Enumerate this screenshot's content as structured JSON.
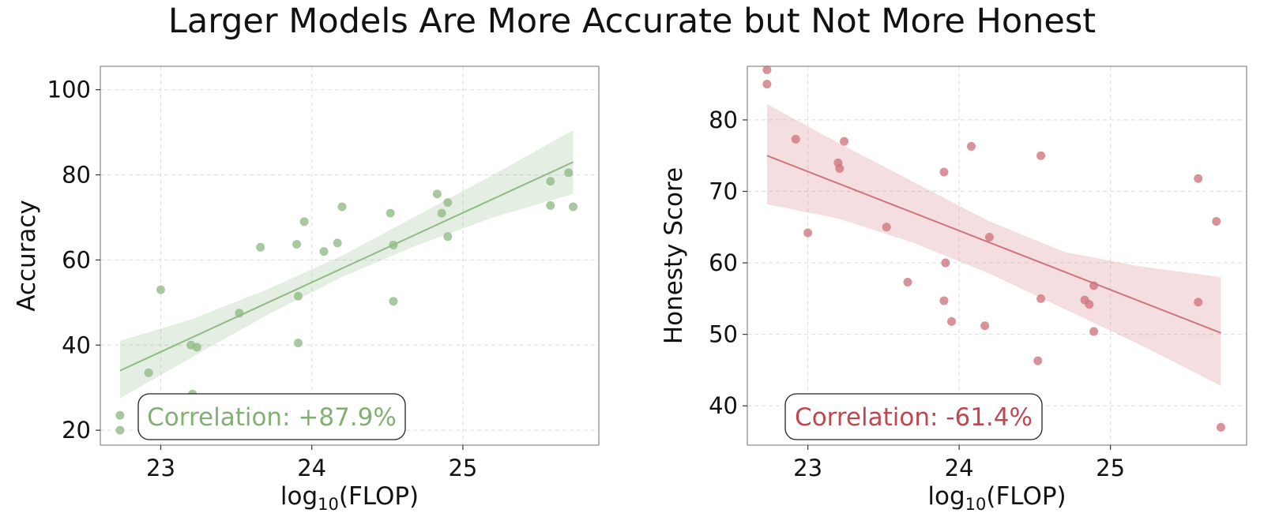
{
  "title": "Larger Models Are More Accurate but Not More Honest",
  "chart_data": [
    {
      "type": "scatter",
      "name": "accuracy",
      "xlabel_base": "log",
      "xlabel_sub": "10",
      "xlabel_rest": "(FLOP)",
      "ylabel": "Accuracy",
      "xlim": [
        22.6,
        25.9
      ],
      "ylim": [
        16.5,
        105.5
      ],
      "xticks": [
        23,
        24,
        25
      ],
      "yticks": [
        20,
        40,
        60,
        80,
        100
      ],
      "color": "#8fba84",
      "correlation_label": "Correlation: +87.9%",
      "correlation_color": "#82b074",
      "fit": {
        "x": [
          22.73,
          25.73
        ],
        "y": [
          34.0,
          83.0
        ]
      },
      "ci": {
        "x": [
          22.73,
          23.2,
          23.7,
          24.2,
          24.7,
          25.2,
          25.73
        ],
        "lower": [
          27.5,
          37.0,
          47.0,
          56.0,
          63.5,
          70.0,
          75.5
        ],
        "upper": [
          41.0,
          46.0,
          53.0,
          61.0,
          70.5,
          80.0,
          90.5
        ]
      },
      "points": [
        {
          "x": 22.73,
          "y": 20.0
        },
        {
          "x": 22.73,
          "y": 23.5
        },
        {
          "x": 22.92,
          "y": 33.5
        },
        {
          "x": 23.0,
          "y": 53.0
        },
        {
          "x": 23.2,
          "y": 40.0
        },
        {
          "x": 23.24,
          "y": 39.5
        },
        {
          "x": 23.21,
          "y": 28.5
        },
        {
          "x": 23.52,
          "y": 47.5
        },
        {
          "x": 23.66,
          "y": 63.0
        },
        {
          "x": 23.9,
          "y": 63.7
        },
        {
          "x": 23.91,
          "y": 51.5
        },
        {
          "x": 23.91,
          "y": 40.5
        },
        {
          "x": 23.95,
          "y": 69.0
        },
        {
          "x": 24.08,
          "y": 62.0
        },
        {
          "x": 24.17,
          "y": 64.0
        },
        {
          "x": 24.2,
          "y": 72.5
        },
        {
          "x": 24.52,
          "y": 71.0
        },
        {
          "x": 24.54,
          "y": 63.5
        },
        {
          "x": 24.54,
          "y": 50.3
        },
        {
          "x": 24.83,
          "y": 75.5
        },
        {
          "x": 24.86,
          "y": 71.0
        },
        {
          "x": 24.9,
          "y": 73.5
        },
        {
          "x": 24.9,
          "y": 65.5
        },
        {
          "x": 25.58,
          "y": 78.5
        },
        {
          "x": 25.58,
          "y": 72.8
        },
        {
          "x": 25.7,
          "y": 80.5
        },
        {
          "x": 25.73,
          "y": 72.5
        }
      ]
    },
    {
      "type": "scatter",
      "name": "honesty",
      "xlabel_base": "log",
      "xlabel_sub": "10",
      "xlabel_rest": "(FLOP)",
      "ylabel": "Honesty Score",
      "xlim": [
        22.6,
        25.9
      ],
      "ylim": [
        34.5,
        87.5
      ],
      "xticks": [
        23,
        24,
        25
      ],
      "yticks": [
        40,
        50,
        60,
        70,
        80
      ],
      "color": "#d0737c",
      "correlation_label": "Correlation: -61.4%",
      "correlation_color": "#c0474f",
      "fit": {
        "x": [
          22.73,
          25.73
        ],
        "y": [
          75.0,
          50.2
        ]
      },
      "ci": {
        "x": [
          22.73,
          23.2,
          23.7,
          24.2,
          24.7,
          25.2,
          25.73
        ],
        "lower": [
          68.2,
          66.2,
          62.8,
          58.5,
          53.5,
          48.5,
          42.8
        ],
        "upper": [
          82.2,
          76.8,
          71.3,
          65.8,
          61.5,
          59.5,
          58.0
        ]
      },
      "points": [
        {
          "x": 22.73,
          "y": 87.0
        },
        {
          "x": 22.73,
          "y": 85.0
        },
        {
          "x": 22.92,
          "y": 77.3
        },
        {
          "x": 23.0,
          "y": 64.2
        },
        {
          "x": 23.2,
          "y": 74.0
        },
        {
          "x": 23.21,
          "y": 73.2
        },
        {
          "x": 23.24,
          "y": 77.0
        },
        {
          "x": 23.52,
          "y": 65.0
        },
        {
          "x": 23.66,
          "y": 57.3
        },
        {
          "x": 23.9,
          "y": 72.7
        },
        {
          "x": 23.91,
          "y": 60.0
        },
        {
          "x": 23.9,
          "y": 54.7
        },
        {
          "x": 23.95,
          "y": 51.8
        },
        {
          "x": 24.08,
          "y": 76.3
        },
        {
          "x": 24.17,
          "y": 51.2
        },
        {
          "x": 24.2,
          "y": 63.6
        },
        {
          "x": 24.52,
          "y": 46.3
        },
        {
          "x": 24.54,
          "y": 75.0
        },
        {
          "x": 24.54,
          "y": 55.0
        },
        {
          "x": 24.83,
          "y": 54.8
        },
        {
          "x": 24.86,
          "y": 54.2
        },
        {
          "x": 24.89,
          "y": 56.8
        },
        {
          "x": 24.89,
          "y": 50.4
        },
        {
          "x": 25.58,
          "y": 71.8
        },
        {
          "x": 25.58,
          "y": 54.5
        },
        {
          "x": 25.7,
          "y": 65.8
        },
        {
          "x": 25.73,
          "y": 37.0
        }
      ]
    }
  ]
}
